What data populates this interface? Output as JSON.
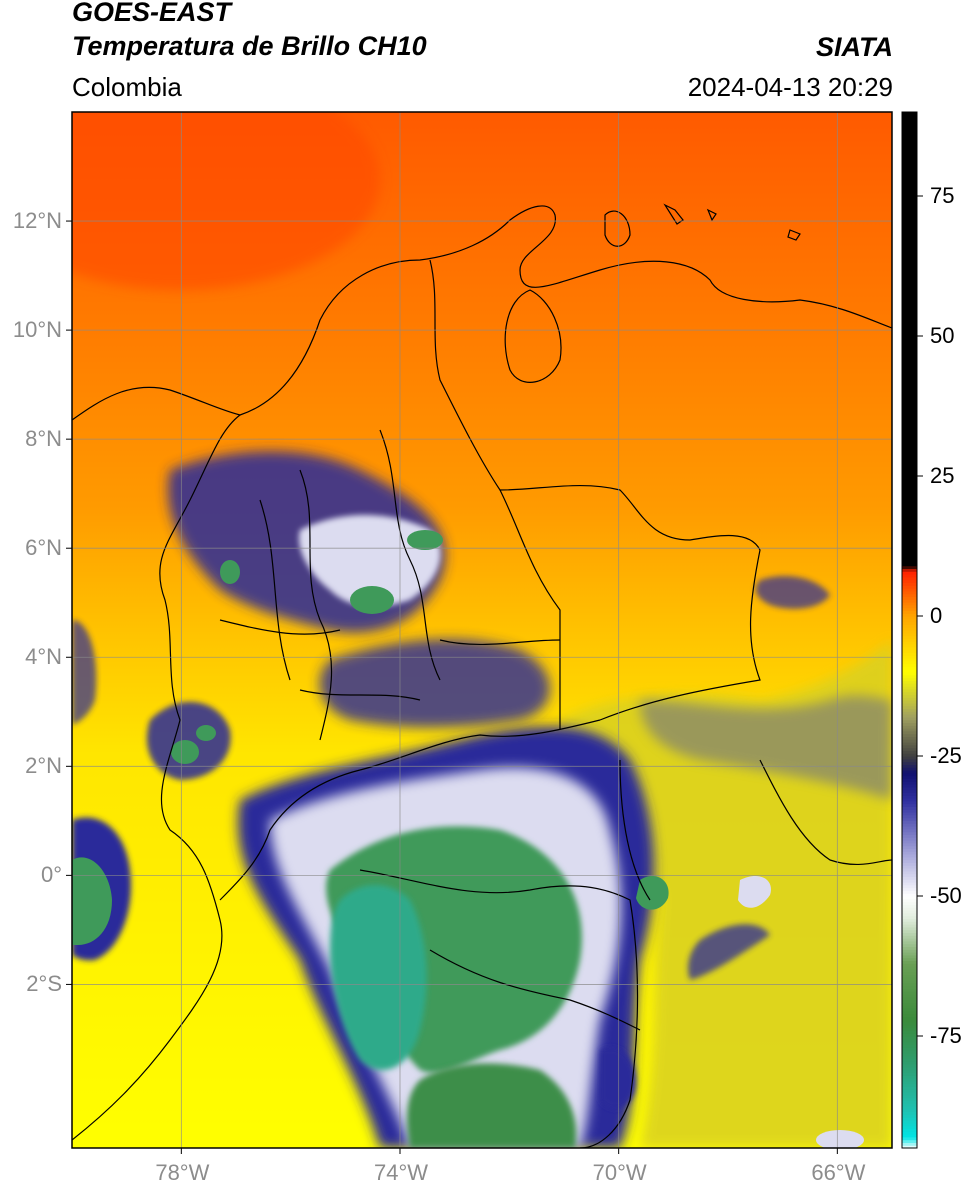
{
  "header": {
    "line1": "GOES-EAST",
    "line2": "Temperatura de Brillo CH10",
    "region": "Colombia",
    "brand": "SIATA",
    "timestamp": "2024-04-13 20:29"
  },
  "map": {
    "lat_labels": [
      {
        "text": "12°N",
        "lat": 12
      },
      {
        "text": "10°N",
        "lat": 10
      },
      {
        "text": "8°N",
        "lat": 8
      },
      {
        "text": "6°N",
        "lat": 6
      },
      {
        "text": "4°N",
        "lat": 4
      },
      {
        "text": "2°N",
        "lat": 2
      },
      {
        "text": "0°",
        "lat": 0
      },
      {
        "text": "2°S",
        "lat": -2
      }
    ],
    "lon_labels": [
      {
        "text": "78°W",
        "lon": -78
      },
      {
        "text": "74°W",
        "lon": -74
      },
      {
        "text": "70°W",
        "lon": -70
      },
      {
        "text": "66°W",
        "lon": -66
      }
    ],
    "extent": {
      "lon_min": -80,
      "lon_max": -65,
      "lat_min": -5,
      "lat_max": 14
    },
    "gridlines": true
  },
  "colorbar": {
    "range": [
      -95,
      90
    ],
    "ticks": [
      {
        "text": "75",
        "value": 75
      },
      {
        "text": "50",
        "value": 50
      },
      {
        "text": "25",
        "value": 25
      },
      {
        "text": "0",
        "value": 0
      },
      {
        "text": "-25",
        "value": -25
      },
      {
        "text": "-50",
        "value": -50
      },
      {
        "text": "-75",
        "value": -75
      }
    ],
    "stops": [
      {
        "value": -95,
        "color": "#ffffff"
      },
      {
        "value": -93,
        "color": "#00e5e5"
      },
      {
        "value": -88,
        "color": "#20c0b0"
      },
      {
        "value": -80,
        "color": "#2e9e70"
      },
      {
        "value": -72,
        "color": "#3b8a3b"
      },
      {
        "value": -62,
        "color": "#6aa055"
      },
      {
        "value": -54,
        "color": "#e0ecdc"
      },
      {
        "value": -50,
        "color": "#ffffff"
      },
      {
        "value": -42,
        "color": "#a0a0d8"
      },
      {
        "value": -33,
        "color": "#3030a0"
      },
      {
        "value": -28,
        "color": "#101070"
      },
      {
        "value": -25,
        "color": "#404040"
      },
      {
        "value": -18,
        "color": "#a0a060"
      },
      {
        "value": -10,
        "color": "#ffff00"
      },
      {
        "value": 0,
        "color": "#ffa500"
      },
      {
        "value": 8,
        "color": "#ff2000"
      },
      {
        "value": 9,
        "color": "#000000"
      },
      {
        "value": 90,
        "color": "#000000"
      }
    ]
  }
}
